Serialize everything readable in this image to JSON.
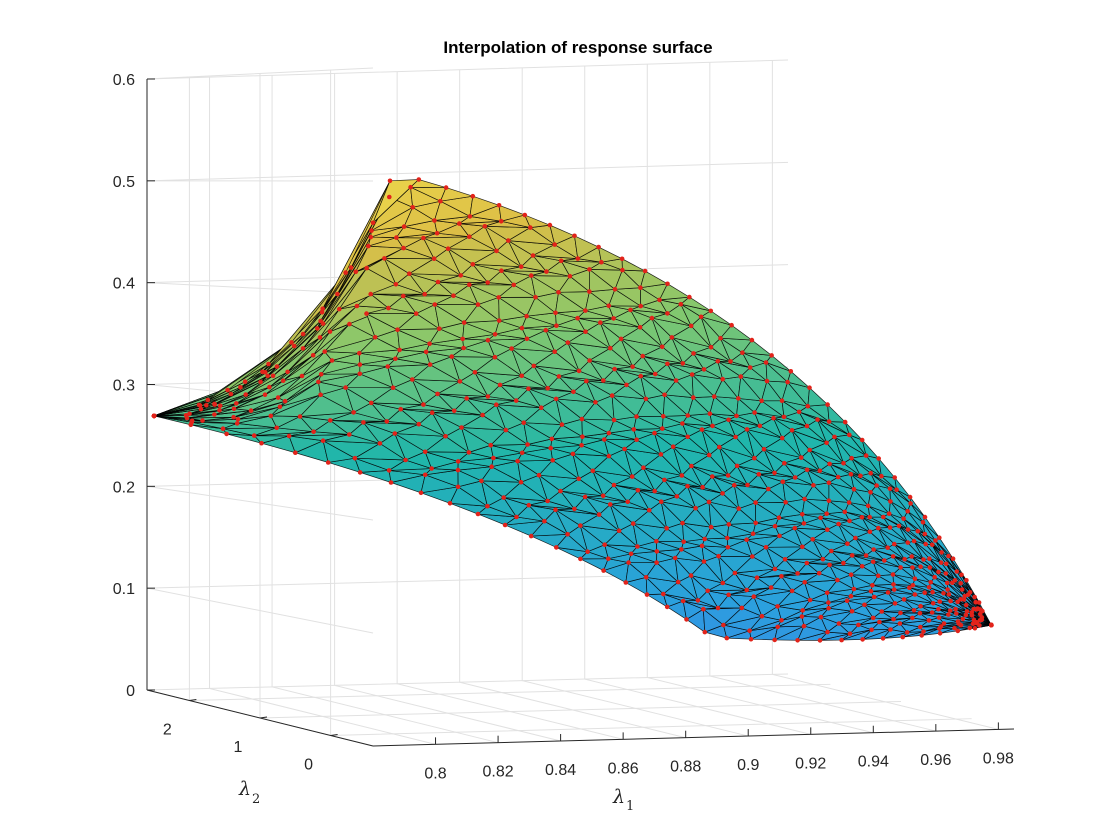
{
  "chart_data": {
    "type": "surface",
    "title": "Interpolation of response surface",
    "xlabel": "λ",
    "xlabel_sub": "1",
    "ylabel": "λ",
    "ylabel_sub": "2",
    "zlabel": "",
    "x_ticks": [
      "0.8",
      "0.82",
      "0.84",
      "0.86",
      "0.88",
      "0.9",
      "0.92",
      "0.94",
      "0.96",
      "0.98"
    ],
    "y_ticks": [
      "0",
      "1",
      "2"
    ],
    "z_ticks": [
      "0",
      "0.1",
      "0.2",
      "0.3",
      "0.4",
      "0.5",
      "0.6"
    ],
    "xlim": [
      0.78,
      0.985
    ],
    "ylim": [
      -0.6,
      2.6
    ],
    "zlim": [
      0,
      0.6
    ],
    "grid": true,
    "colormap": "parula",
    "marker_color": "#e2231a",
    "edge_color": "#000000",
    "surface_corners": [
      {
        "lambda1": 0.78,
        "lambda2": 2.5,
        "z": 0.27
      },
      {
        "lambda1": 0.8,
        "lambda2": 0.0,
        "z": 0.51
      },
      {
        "lambda1": 0.98,
        "lambda2": -0.5,
        "z": 0.1
      },
      {
        "lambda1": 0.92,
        "lambda2": 0.8,
        "z": 0.07
      }
    ]
  }
}
